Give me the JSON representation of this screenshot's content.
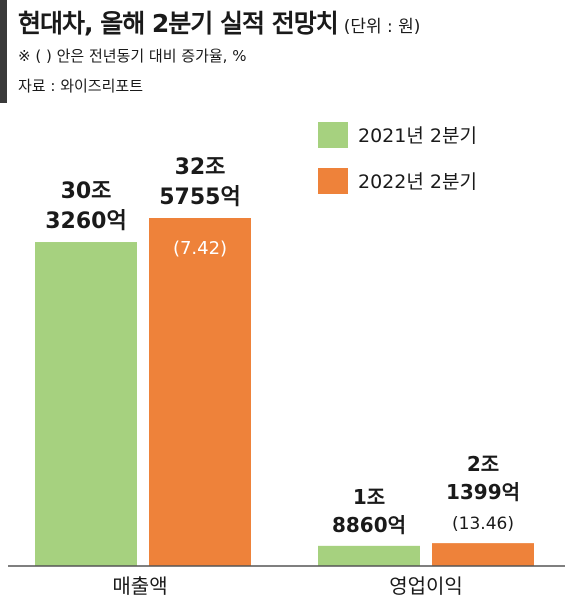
{
  "header": {
    "title": "현대차, 올해 2분기 실적 전망치",
    "unit": "(단위 : 원)",
    "note": "※ ( ) 안은 전년동기 대비 증가율, %",
    "source": "자료 : 와이즈리포트"
  },
  "colors": {
    "series_2021": "#a6d17f",
    "series_2022": "#ee823a",
    "axis": "#555555",
    "text": "#1a1a1a"
  },
  "chart_data": {
    "type": "bar",
    "categories": [
      "매출액",
      "영업이익"
    ],
    "unit": "원",
    "series": [
      {
        "name": "2021년 2분기",
        "values": [
          303260,
          18860
        ],
        "labels": [
          [
            "30조",
            "3260억"
          ],
          [
            "1조",
            "8860억"
          ]
        ]
      },
      {
        "name": "2022년 2분기",
        "values": [
          325755,
          21399
        ],
        "labels": [
          [
            "32조",
            "5755억"
          ],
          [
            "2조",
            "1399억"
          ]
        ],
        "growth": [
          "(7.42)",
          "(13.46)"
        ]
      }
    ],
    "legend": "top-right",
    "ylim": [
      0,
      350000
    ]
  }
}
